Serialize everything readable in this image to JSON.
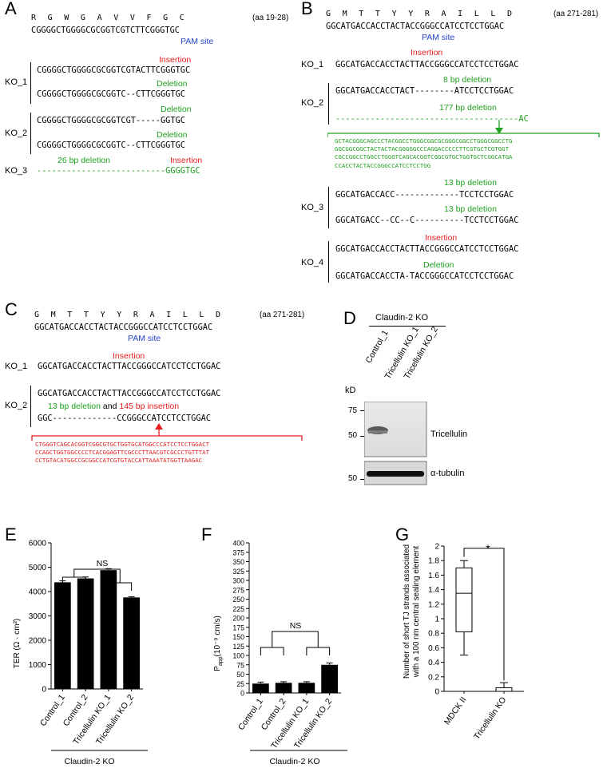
{
  "panelA": {
    "label": "A",
    "aa_seq": "R G W G A V V F G C",
    "aa_range": "(aa 19-28)",
    "wt_seq": "CGGGGCTGGGGCGCGGTCGTCTTCGGGTGC",
    "pam": "PAM site",
    "rows": [
      {
        "name": "KO_1",
        "ann1": "Insertion",
        "seq1": "CGGGGCTGGGGCGCGGTCGTACTTCGGGTGC",
        "ann2": "Deletion",
        "seq2": "CGGGGCTGGGGCGCGGTC--CTTCGGGTGC"
      },
      {
        "name": "KO_2",
        "ann1": "Deletion",
        "seq1": "CGGGGCTGGGGCGCGGTCGT-----GGTGC",
        "ann2": "Deletion",
        "seq2": "CGGGGCTGGGGCGCGGTC--CTTCGGGTGC"
      },
      {
        "name": "KO_3",
        "ann_del": "26 bp deletion",
        "ann_ins": "Insertion",
        "seq": "--------------------------GGGGTGC"
      }
    ]
  },
  "panelB": {
    "label": "B",
    "aa_seq": "G M T T Y Y R A I L L D",
    "aa_range": "(aa 271-281)",
    "wt_seq": "GGCATGACCACCTACTACCGGGCCATCCTCCTGGAC",
    "pam": "PAM site",
    "ko1": {
      "name": "KO_1",
      "ann": "Insertion",
      "seq": "GGCATGACCACCTACTTACCGGGCCATCCTCCTGGAC"
    },
    "ko2": {
      "name": "KO_2",
      "ann1": "8 bp deletion",
      "seq1": "GGCATGACCACCTACT--------ATCCTCCTGGAC",
      "ann2": "177 bp deletion",
      "seq2": "-------------------------------------AC",
      "block": [
        "GCTACGGGCAGCCCTACGGCCTGGGCGGCGCGGGCGGCCTGGGCGGCCTG",
        "GGCGGCGGCTACTACTACGGGGGCCCAGGACCCCCTTCGTGCTCGTGGT",
        "CGCCGGCCTGGCCTGGGTCAGCACGGTCGGCGTGCTGGTGCTCGGCATGA",
        "CCACCTACTACCGGGCCATCCTCCTGG"
      ]
    },
    "ko3": {
      "name": "KO_3",
      "ann1": "13 bp deletion",
      "seq1": "GGCATGACCACC-------------TCCTCCTGGAC",
      "ann2": "13 bp deletion",
      "seq2": "GGCATGACC--CC--C----------TCCTCCTGGAC"
    },
    "ko4": {
      "name": "KO_4",
      "ann1": "Insertion",
      "seq1": "GGCATGACCACCTACTTACCGGGCCATCCTCCTGGAC",
      "ann2": "Deletion",
      "seq2": "GGCATGACCACCTA-TACCGGGCCATCCTCCTGGAC"
    }
  },
  "panelC": {
    "label": "C",
    "aa_seq": "G M T T Y Y R A I L L D",
    "aa_range": "(aa 271-281)",
    "wt_seq": "GGCATGACCACCTACTACCGGGCCATCCTCCTGGAC",
    "pam": "PAM site",
    "ko1": {
      "name": "KO_1",
      "ann": "Insertion",
      "seq": "GGCATGACCACCTACTTACCGGGCCATCCTCCTGGAC"
    },
    "ko2": {
      "name": "KO_2",
      "seq1": "GGCATGACCACCTACTTACCGGGCCATCCTCCTGGAC",
      "ann_del": "13 bp deletion",
      "ann_and": "and",
      "ann_ins": "145 bp insertion",
      "seq2": "GGC-------------CCGGGCCATCCTCCTGGAC",
      "block": [
        "CTGGGTCAGCACGGTCGGCGTGCTGGTGCATGGCCCATCCTCCTGGACT",
        "CCAGCTGGTGGCCCCTCACGGAGTTCGCCCTTAACGTCGCCCTGTTTAT",
        "CCTGTACATGGCCGCGGCCATCGTGTACCATTAAATATGGTTAAGAC"
      ]
    }
  },
  "panelD": {
    "label": "D",
    "group": "Claudin-2 KO",
    "lanes": [
      "Control_1",
      "Tricellulin KO_1",
      "Tricellulin KO_2"
    ],
    "kd_label": "kD",
    "markers_top": [
      "75",
      "50"
    ],
    "marker_bottom": "50",
    "band_top": "Tricellulin",
    "band_bottom": "α-tubulin"
  },
  "panelE": {
    "label": "E",
    "ylabel": "TER (Ω · cm²)",
    "sig": "NS",
    "group": "Claudin-2 KO",
    "chart_data": {
      "type": "bar",
      "categories": [
        "Control_1",
        "Control_2",
        "Tricellulin KO_1",
        "Tricellulin KO_2"
      ],
      "values": [
        4380,
        4540,
        4880,
        3760
      ],
      "errors": [
        60,
        60,
        60,
        30
      ],
      "ylim": [
        0,
        6000
      ],
      "yticks": [
        "0",
        "1000",
        "2000",
        "3000",
        "4000",
        "5000",
        "6000"
      ]
    }
  },
  "panelF": {
    "label": "F",
    "ylabel_main": "P",
    "ylabel_sub": "app",
    "ylabel_unit": "(10⁻⁹ cm/s)",
    "sig": "NS",
    "group": "Claudin-2 KO",
    "chart_data": {
      "type": "bar",
      "categories": [
        "Control_1",
        "Control_2",
        "Tricellulin KO_1",
        "Tricellulin KO_2"
      ],
      "values": [
        25,
        27,
        27,
        75
      ],
      "errors": [
        4,
        3,
        3,
        5
      ],
      "ylim": [
        0,
        400
      ],
      "yticks": [
        "0",
        "25",
        "50",
        "75",
        "100",
        "125",
        "150",
        "175",
        "200",
        "225",
        "250",
        "275",
        "300",
        "325",
        "350",
        "375",
        "400"
      ]
    }
  },
  "panelG": {
    "label": "G",
    "ylabel1": "Number of short TJ strands associated",
    "ylabel2": "with a 100 nm central sealing element",
    "sig": "*",
    "chart_data": {
      "type": "box",
      "categories": [
        "MDCK II",
        "Tricellulin KO"
      ],
      "boxes": [
        {
          "min": 0.5,
          "q1": 0.82,
          "median": 1.35,
          "q3": 1.7,
          "max": 1.8
        },
        {
          "min": 0.0,
          "q1": 0.0,
          "median": 0.0,
          "q3": 0.05,
          "max": 0.12
        }
      ],
      "ylim": [
        0,
        2
      ],
      "yticks": [
        "0",
        "0.2",
        "0.4",
        "0.6",
        "0.8",
        "1",
        "1.2",
        "1.4",
        "1.6",
        "1.8",
        "2"
      ]
    }
  }
}
